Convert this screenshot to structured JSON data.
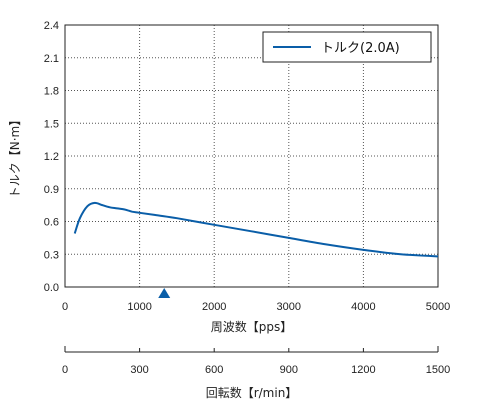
{
  "chart_data": {
    "type": "line",
    "xlabel": "周波数【pps】",
    "ylabel": "トルク【N·m】",
    "x2label": "回転数【r/min】",
    "xlim": [
      0,
      5000
    ],
    "ylim": [
      0,
      2.4
    ],
    "x2lim": [
      0,
      1500
    ],
    "xticks": [
      "0",
      "1000",
      "2000",
      "3000",
      "4000",
      "5000"
    ],
    "yticks": [
      "0.0",
      "0.3",
      "0.6",
      "0.9",
      "1.2",
      "1.5",
      "1.8",
      "2.1",
      "2.4"
    ],
    "x2ticks": [
      "0",
      "300",
      "600",
      "900",
      "1200",
      "1500"
    ],
    "grid": true,
    "legend_position": "top-right",
    "line_color": "#0a5ea8",
    "marker_color": "#0a5ea8",
    "marker_x": 1330,
    "series": [
      {
        "name": "トルク(2.0A)",
        "x": [
          130,
          200,
          300,
          400,
          500,
          600,
          700,
          800,
          900,
          1000,
          1200,
          1500,
          2000,
          2500,
          3000,
          3500,
          4000,
          4500,
          5000
        ],
        "y": [
          0.49,
          0.63,
          0.74,
          0.77,
          0.75,
          0.73,
          0.72,
          0.71,
          0.69,
          0.68,
          0.66,
          0.63,
          0.57,
          0.51,
          0.45,
          0.39,
          0.34,
          0.3,
          0.28
        ]
      }
    ]
  }
}
